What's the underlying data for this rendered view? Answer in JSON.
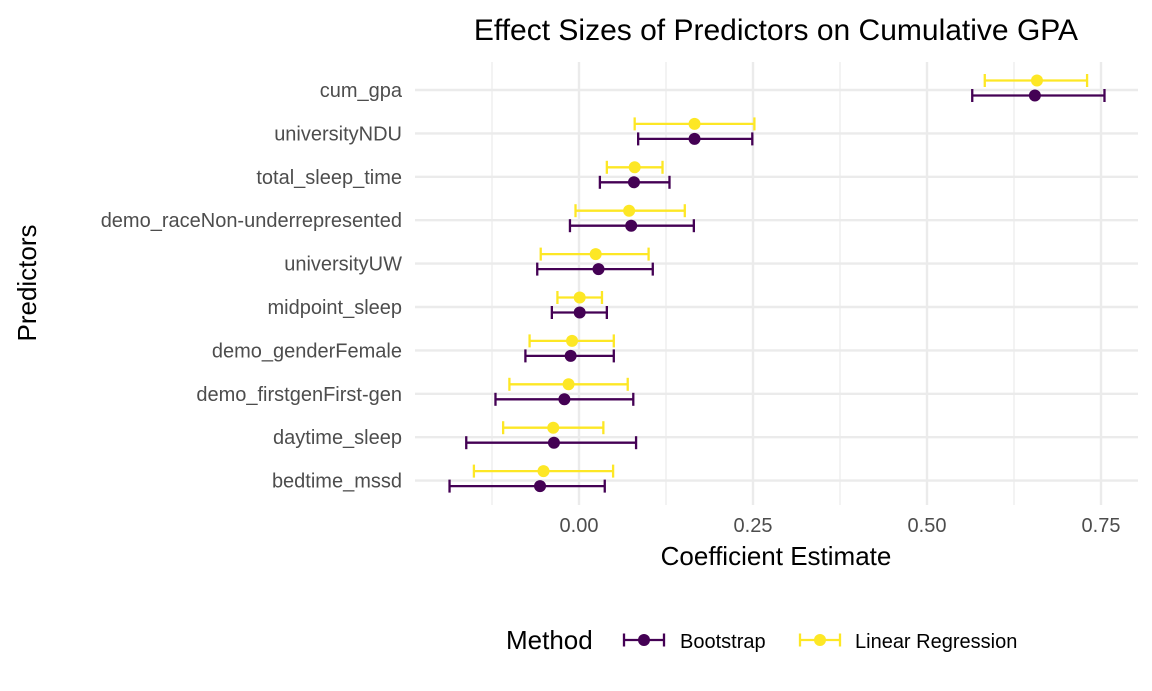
{
  "chart_data": {
    "type": "dot_errorbar",
    "title": "Effect Sizes of Predictors on Cumulative GPA",
    "xlabel": "Coefficient Estimate",
    "ylabel": "Predictors",
    "xlim": [
      -0.235,
      0.8
    ],
    "x_ticks": [
      0.0,
      0.25,
      0.5,
      0.75
    ],
    "x_tick_labels": [
      "0.00",
      "0.25",
      "0.50",
      "0.75"
    ],
    "grid": true,
    "legend_position": "bottom",
    "legend_title": "Method",
    "categories": [
      "cum_gpa",
      "universityNDU",
      "total_sleep_time",
      "demo_raceNon-underrepresented",
      "universityUW",
      "midpoint_sleep",
      "demo_genderFemale",
      "demo_firstgenFirst-gen",
      "daytime_sleep",
      "bedtime_mssd"
    ],
    "series": [
      {
        "name": "Bootstrap",
        "color": "#440154",
        "estimate": [
          0.655,
          0.166,
          0.079,
          0.075,
          0.028,
          0.001,
          -0.012,
          -0.021,
          -0.036,
          -0.056
        ],
        "lower": [
          0.565,
          0.085,
          0.03,
          -0.013,
          -0.06,
          -0.039,
          -0.077,
          -0.12,
          -0.162,
          -0.186
        ],
        "upper": [
          0.755,
          0.249,
          0.13,
          0.165,
          0.106,
          0.04,
          0.05,
          0.078,
          0.082,
          0.037
        ]
      },
      {
        "name": "Linear Regression",
        "color": "#FDE725",
        "estimate": [
          0.658,
          0.166,
          0.08,
          0.072,
          0.024,
          0.001,
          -0.01,
          -0.015,
          -0.037,
          -0.051
        ],
        "lower": [
          0.583,
          0.08,
          0.04,
          -0.005,
          -0.055,
          -0.031,
          -0.071,
          -0.1,
          -0.109,
          -0.151
        ],
        "upper": [
          0.73,
          0.252,
          0.12,
          0.152,
          0.1,
          0.033,
          0.05,
          0.07,
          0.035,
          0.049
        ]
      }
    ]
  }
}
